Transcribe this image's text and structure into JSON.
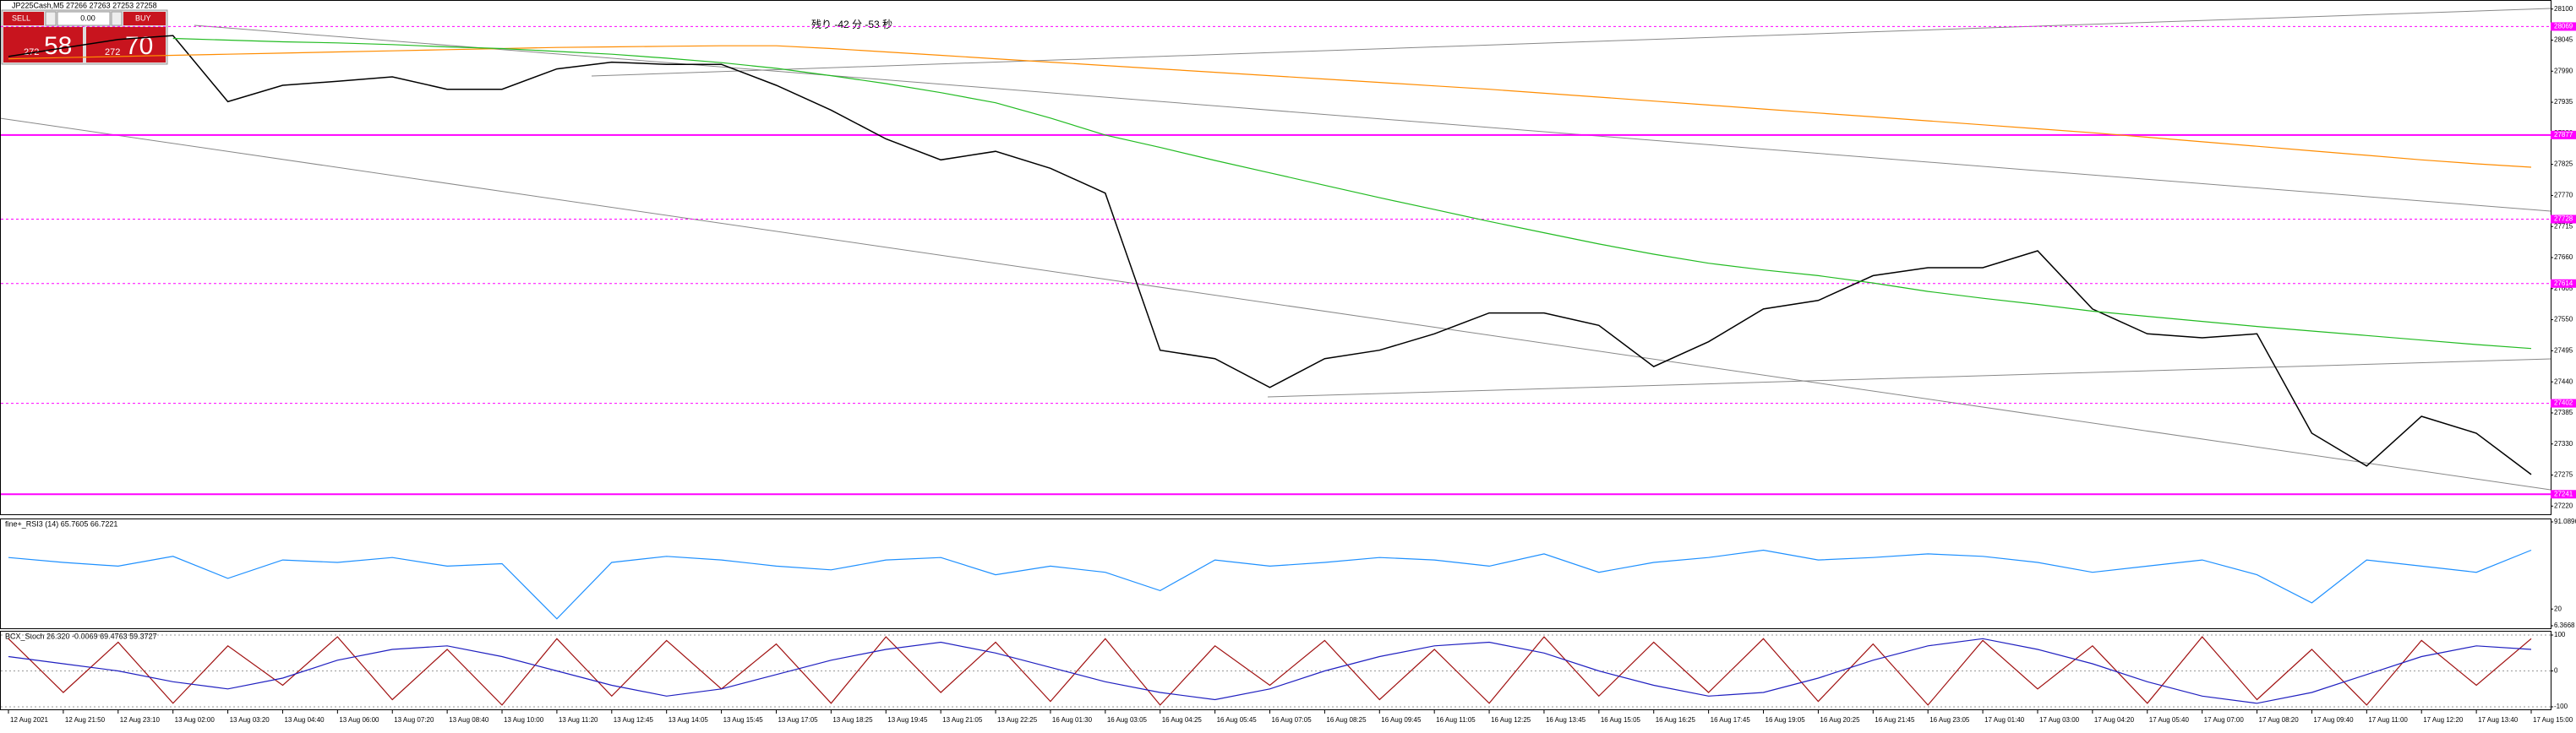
{
  "trade_panel": {
    "sell": "SELL",
    "buy": "BUY",
    "lots": "0.00",
    "sell_big": "272",
    "sell_small": "58",
    "buy_big": "272",
    "buy_small": "70"
  },
  "chart_data": [
    {
      "type": "line",
      "title": "JP225Cash,M5 27266 27263 27253 27258",
      "annotation": "残り -42 分 -53 秒",
      "categories": [
        "12 Aug 2021",
        "12 Aug 21:50",
        "12 Aug 23:10",
        "13 Aug 02:00",
        "13 Aug 03:20",
        "13 Aug 04:40",
        "13 Aug 06:00",
        "13 Aug 07:20",
        "13 Aug 08:40",
        "13 Aug 10:00",
        "13 Aug 11:20",
        "13 Aug 12:45",
        "13 Aug 14:05",
        "13 Aug 15:45",
        "13 Aug 17:05",
        "13 Aug 18:25",
        "13 Aug 19:45",
        "13 Aug 21:05",
        "13 Aug 22:25",
        "16 Aug 01:30",
        "16 Aug 03:05",
        "16 Aug 04:25",
        "16 Aug 05:45",
        "16 Aug 07:05",
        "16 Aug 08:25",
        "16 Aug 09:45",
        "16 Aug 11:05",
        "16 Aug 12:25",
        "16 Aug 13:45",
        "16 Aug 15:05",
        "16 Aug 16:25",
        "16 Aug 17:45",
        "16 Aug 19:05",
        "16 Aug 20:25",
        "16 Aug 21:45",
        "16 Aug 23:05",
        "17 Aug 01:40",
        "17 Aug 03:00",
        "17 Aug 04:20",
        "17 Aug 05:40",
        "17 Aug 07:00",
        "17 Aug 08:20",
        "17 Aug 09:40",
        "17 Aug 11:00",
        "17 Aug 12:20",
        "17 Aug 13:40",
        "17 Aug 15:00"
      ],
      "series": [
        {
          "color": "#000000",
          "values": [
            28016,
            28031,
            28046,
            28053,
            27936,
            27965,
            27972,
            27980,
            27958,
            27958,
            27994,
            28006,
            28002,
            28002,
            27965,
            27921,
            27870,
            27833,
            27848,
            27818,
            27774,
            27496,
            27481,
            27430,
            27481,
            27496,
            27525,
            27562,
            27562,
            27540,
            27467,
            27511,
            27569,
            27584,
            27628,
            27642,
            27642,
            27672,
            27569,
            27525,
            27518,
            27525,
            27349,
            27291,
            27379,
            27349,
            27276
          ]
        },
        {
          "color": "#ff8c00",
          "values": [
            28012,
            28014,
            28016,
            28018,
            28020,
            28022,
            28024,
            28026,
            28028,
            28030,
            28032,
            28033,
            28034,
            28035,
            28035,
            28030,
            28024,
            28018,
            28012,
            28006,
            28000,
            27994,
            27988,
            27982,
            27976,
            27970,
            27964,
            27958,
            27951,
            27944,
            27937,
            27930,
            27923,
            27916,
            27909,
            27902,
            27895,
            27888,
            27881,
            27873,
            27865,
            27857,
            27849,
            27841,
            27833,
            27826,
            27820
          ]
        },
        {
          "color": "#22bb22",
          "values": [
            null,
            null,
            null,
            28048,
            28045,
            28042,
            28040,
            28037,
            28033,
            28030,
            28025,
            28020,
            28013,
            28005,
            27995,
            27982,
            27968,
            27952,
            27934,
            27907,
            27877,
            27855,
            27832,
            27810,
            27788,
            27766,
            27745,
            27724,
            27704,
            27684,
            27666,
            27650,
            27638,
            27628,
            27615,
            27600,
            27588,
            27577,
            27565,
            27556,
            27547,
            27538,
            27530,
            27522,
            27514,
            27506,
            27499
          ]
        }
      ],
      "ylim": [
        27210,
        28110
      ],
      "yticks": [
        28100,
        28045,
        27990,
        27935,
        27880,
        27825,
        27770,
        27715,
        27660,
        27605,
        27550,
        27495,
        27440,
        27385,
        27330,
        27275,
        27220
      ],
      "level_color": "#ff00ff",
      "levels": [
        {
          "value": 28069,
          "style": "dashed"
        },
        {
          "value": 27877,
          "style": "solid"
        },
        {
          "value": 27728,
          "style": "dashed"
        },
        {
          "value": 27614,
          "style": "dashed"
        },
        {
          "value": 27402,
          "style": "dashed"
        },
        {
          "value": 27241,
          "style": "solid"
        }
      ]
    },
    {
      "type": "line",
      "title": "fine+_RSI3 (14) 65.7605 66.7221",
      "series": [
        {
          "color": "#1e90ff",
          "values": [
            62,
            58,
            55,
            63,
            45,
            60,
            58,
            62,
            55,
            57,
            12,
            58,
            63,
            60,
            55,
            52,
            60,
            62,
            48,
            55,
            50,
            35,
            60,
            55,
            58,
            62,
            60,
            55,
            65,
            50,
            58,
            62,
            68,
            60,
            62,
            65,
            63,
            58,
            50,
            55,
            60,
            48,
            25,
            60,
            55,
            50,
            68
          ]
        }
      ],
      "ylim": [
        6.3668,
        91.0896
      ],
      "yticks": [
        91.0896,
        20,
        6.3668
      ]
    },
    {
      "type": "line",
      "title": "BCX_Stoch 26.320 -0.0069 69.4763 59.3727",
      "series": [
        {
          "color": "#a01010",
          "values": [
            90,
            -60,
            80,
            -90,
            70,
            -40,
            95,
            -80,
            60,
            -95,
            90,
            -70,
            85,
            -50,
            75,
            -90,
            95,
            -60,
            80,
            -85,
            90,
            -95,
            70,
            -40,
            85,
            -80,
            60,
            -90,
            95,
            -70,
            80,
            -60,
            90,
            -85,
            75,
            -95,
            85,
            -50,
            70,
            -90,
            95,
            -80,
            60,
            -95,
            85,
            -40,
            90
          ]
        },
        {
          "color": "#2020c0",
          "values": [
            40,
            20,
            0,
            -30,
            -50,
            -20,
            30,
            60,
            70,
            40,
            0,
            -40,
            -70,
            -50,
            -10,
            30,
            60,
            80,
            50,
            10,
            -30,
            -60,
            -80,
            -50,
            0,
            40,
            70,
            80,
            50,
            0,
            -40,
            -70,
            -60,
            -20,
            30,
            70,
            90,
            60,
            20,
            -30,
            -70,
            -90,
            -60,
            -10,
            40,
            70,
            60
          ]
        }
      ],
      "ylim": [
        -100,
        100
      ],
      "yticks": [
        100,
        0,
        -100
      ],
      "grid": true
    }
  ]
}
